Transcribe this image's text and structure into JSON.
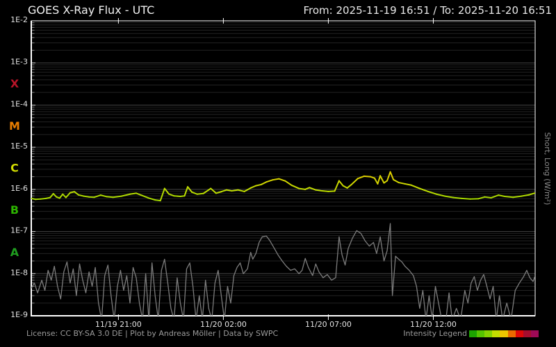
{
  "header": {
    "title": "GOES X-Ray Flux - UTC",
    "range": "From: 2025-11-19 16:51  /  To: 2025-11-20 16:51"
  },
  "footer": {
    "license": "License: CC BY-SA 3.0 DE | Plot by Andreas Möller | Data by SWPC",
    "legend_label": "Intensity Legend"
  },
  "chart_data": {
    "type": "line",
    "title": "GOES X-Ray Flux - UTC",
    "x_start": "2025-11-19 16:51",
    "x_end": "2025-11-20 16:51",
    "x_unit_hours": 24,
    "ylabel_right": "Short, Long (W/m²)",
    "y_log": true,
    "ylim": [
      1e-09,
      0.01
    ],
    "y_tick_labels": [
      "1E-2",
      "1E-3",
      "1E-4",
      "1E-5",
      "1E-6",
      "1E-7",
      "1E-8",
      "1E-9"
    ],
    "x_ticks": [
      {
        "label": "11/19 21:00",
        "t": 4.15
      },
      {
        "label": "11/20 02:00",
        "t": 9.15
      },
      {
        "label": "11/20 07:00",
        "t": 14.15
      },
      {
        "label": "11/20 12:00",
        "t": 19.15
      }
    ],
    "flare_classes": [
      {
        "label": "X",
        "flux": 0.000316,
        "color": "#b81428"
      },
      {
        "label": "M",
        "flux": 3.16e-05,
        "color": "#e87d00"
      },
      {
        "label": "C",
        "flux": 3.16e-06,
        "color": "#d2dc00"
      },
      {
        "label": "B",
        "flux": 3.16e-07,
        "color": "#2db400"
      },
      {
        "label": "A",
        "flux": 3.16e-08,
        "color": "#1f9e1f"
      }
    ],
    "legend_colors": [
      "#1ca400",
      "#55c400",
      "#84d200",
      "#c2de00",
      "#eec600",
      "#ea6a00",
      "#dd0707",
      "#a50d2e",
      "#9d0a56"
    ],
    "intensity_domain_log10": [
      -7.5,
      -3.5
    ],
    "grid": {
      "major_color": "#444444",
      "minor_color": "#232323",
      "tick_stub_color": "#8a8a8a"
    },
    "series": [
      {
        "name": "Long",
        "color_mode": "intensity",
        "points": [
          [
            0,
            6.1e-07
          ],
          [
            0.2,
            5.8e-07
          ],
          [
            0.45,
            5.9e-07
          ],
          [
            0.7,
            6.1e-07
          ],
          [
            0.9,
            6.4e-07
          ],
          [
            1.05,
            7.9e-07
          ],
          [
            1.2,
            6.6e-07
          ],
          [
            1.35,
            6.2e-07
          ],
          [
            1.5,
            7.7e-07
          ],
          [
            1.65,
            6.4e-07
          ],
          [
            1.85,
            8.3e-07
          ],
          [
            2.05,
            8.8e-07
          ],
          [
            2.25,
            7.4e-07
          ],
          [
            2.5,
            6.9e-07
          ],
          [
            2.75,
            6.6e-07
          ],
          [
            3.0,
            6.5e-07
          ],
          [
            3.3,
            7.3e-07
          ],
          [
            3.6,
            6.7e-07
          ],
          [
            3.9,
            6.5e-07
          ],
          [
            4.3,
            6.9e-07
          ],
          [
            4.7,
            7.7e-07
          ],
          [
            5.0,
            8.1e-07
          ],
          [
            5.3,
            7.1e-07
          ],
          [
            5.6,
            6.2e-07
          ],
          [
            5.9,
            5.6e-07
          ],
          [
            6.15,
            5.4e-07
          ],
          [
            6.35,
            1.05e-06
          ],
          [
            6.55,
            7.8e-07
          ],
          [
            6.8,
            7e-07
          ],
          [
            7.1,
            6.8e-07
          ],
          [
            7.3,
            7e-07
          ],
          [
            7.45,
            1.15e-06
          ],
          [
            7.65,
            8.6e-07
          ],
          [
            7.9,
            7.7e-07
          ],
          [
            8.2,
            8e-07
          ],
          [
            8.55,
            1.05e-06
          ],
          [
            8.8,
            8.1e-07
          ],
          [
            9.05,
            8.8e-07
          ],
          [
            9.3,
            9.7e-07
          ],
          [
            9.55,
            9.2e-07
          ],
          [
            9.85,
            9.7e-07
          ],
          [
            10.15,
            8.9e-07
          ],
          [
            10.45,
            1.08e-06
          ],
          [
            10.7,
            1.22e-06
          ],
          [
            10.95,
            1.3e-06
          ],
          [
            11.2,
            1.5e-06
          ],
          [
            11.5,
            1.68e-06
          ],
          [
            11.8,
            1.78e-06
          ],
          [
            12.1,
            1.58e-06
          ],
          [
            12.4,
            1.25e-06
          ],
          [
            12.75,
            1.05e-06
          ],
          [
            13.05,
            1e-06
          ],
          [
            13.25,
            1.1e-06
          ],
          [
            13.55,
            9.7e-07
          ],
          [
            13.85,
            9.2e-07
          ],
          [
            14.15,
            8.9e-07
          ],
          [
            14.45,
            9.1e-07
          ],
          [
            14.66,
            1.6e-06
          ],
          [
            14.85,
            1.22e-06
          ],
          [
            15.05,
            1.08e-06
          ],
          [
            15.25,
            1.3e-06
          ],
          [
            15.55,
            1.8e-06
          ],
          [
            15.85,
            2.05e-06
          ],
          [
            16.15,
            2e-06
          ],
          [
            16.35,
            1.85e-06
          ],
          [
            16.5,
            1.35e-06
          ],
          [
            16.62,
            2.1e-06
          ],
          [
            16.8,
            1.42e-06
          ],
          [
            16.95,
            1.6e-06
          ],
          [
            17.1,
            2.6e-06
          ],
          [
            17.25,
            1.7e-06
          ],
          [
            17.5,
            1.45e-06
          ],
          [
            17.8,
            1.35e-06
          ],
          [
            18.1,
            1.26e-06
          ],
          [
            18.5,
            1.05e-06
          ],
          [
            18.9,
            8.9e-07
          ],
          [
            19.3,
            7.7e-07
          ],
          [
            19.7,
            6.9e-07
          ],
          [
            20.1,
            6.4e-07
          ],
          [
            20.5,
            6.1e-07
          ],
          [
            20.9,
            5.9e-07
          ],
          [
            21.3,
            6e-07
          ],
          [
            21.6,
            6.6e-07
          ],
          [
            21.9,
            6.3e-07
          ],
          [
            22.25,
            7.3e-07
          ],
          [
            22.55,
            6.8e-07
          ],
          [
            22.95,
            6.5e-07
          ],
          [
            23.35,
            6.9e-07
          ],
          [
            23.7,
            7.4e-07
          ],
          [
            24,
            8.2e-07
          ]
        ]
      },
      {
        "name": "Short",
        "color": "#7d7d7d",
        "points": [
          [
            0,
            4.5e-09
          ],
          [
            0.15,
            6e-09
          ],
          [
            0.3,
            3.5e-09
          ],
          [
            0.5,
            7e-09
          ],
          [
            0.65,
            4e-09
          ],
          [
            0.8,
            1.2e-08
          ],
          [
            0.95,
            7e-09
          ],
          [
            1.1,
            1.5e-08
          ],
          [
            1.25,
            5e-09
          ],
          [
            1.4,
            2.5e-09
          ],
          [
            1.55,
            1.1e-08
          ],
          [
            1.7,
            1.9e-08
          ],
          [
            1.85,
            6e-09
          ],
          [
            2.0,
            1.3e-08
          ],
          [
            2.15,
            3e-09
          ],
          [
            2.3,
            1.7e-08
          ],
          [
            2.45,
            7e-09
          ],
          [
            2.6,
            3.5e-09
          ],
          [
            2.75,
            1.1e-08
          ],
          [
            2.9,
            5e-09
          ],
          [
            3.05,
            1.4e-08
          ],
          [
            3.2,
            2e-09
          ],
          [
            3.35,
            8e-10
          ],
          [
            3.5,
            9e-09
          ],
          [
            3.65,
            1.6e-08
          ],
          [
            3.8,
            3e-09
          ],
          [
            3.95,
            8e-10
          ],
          [
            4.1,
            5e-09
          ],
          [
            4.25,
            1.2e-08
          ],
          [
            4.4,
            4e-09
          ],
          [
            4.55,
            9e-09
          ],
          [
            4.7,
            2e-09
          ],
          [
            4.85,
            1.4e-08
          ],
          [
            5.0,
            8e-09
          ],
          [
            5.15,
            2e-09
          ],
          [
            5.3,
            8e-10
          ],
          [
            5.45,
            1e-08
          ],
          [
            5.6,
            8e-10
          ],
          [
            5.75,
            1.8e-08
          ],
          [
            5.9,
            3e-09
          ],
          [
            6.05,
            8e-10
          ],
          [
            6.2,
            1.2e-08
          ],
          [
            6.35,
            2.2e-08
          ],
          [
            6.5,
            6e-09
          ],
          [
            6.65,
            1.5e-09
          ],
          [
            6.8,
            8e-10
          ],
          [
            6.95,
            8e-09
          ],
          [
            7.1,
            2e-09
          ],
          [
            7.25,
            8e-10
          ],
          [
            7.4,
            1.3e-08
          ],
          [
            7.55,
            1.8e-08
          ],
          [
            7.7,
            5e-09
          ],
          [
            7.85,
            8e-10
          ],
          [
            8.0,
            3e-09
          ],
          [
            8.15,
            8e-10
          ],
          [
            8.3,
            7e-09
          ],
          [
            8.45,
            1.5e-09
          ],
          [
            8.6,
            8e-10
          ],
          [
            8.75,
            6e-09
          ],
          [
            8.9,
            1.2e-08
          ],
          [
            9.05,
            3e-09
          ],
          [
            9.2,
            8e-10
          ],
          [
            9.35,
            5e-09
          ],
          [
            9.5,
            2e-09
          ],
          [
            9.65,
            9e-09
          ],
          [
            9.8,
            1.4e-08
          ],
          [
            9.95,
            1.8e-08
          ],
          [
            10.1,
            1e-08
          ],
          [
            10.3,
            1.3e-08
          ],
          [
            10.45,
            3.2e-08
          ],
          [
            10.55,
            2.2e-08
          ],
          [
            10.7,
            3e-08
          ],
          [
            10.85,
            5.5e-08
          ],
          [
            11.0,
            7.5e-08
          ],
          [
            11.2,
            7.8e-08
          ],
          [
            11.35,
            6.2e-08
          ],
          [
            11.55,
            4.2e-08
          ],
          [
            11.75,
            2.8e-08
          ],
          [
            11.95,
            2e-08
          ],
          [
            12.15,
            1.5e-08
          ],
          [
            12.35,
            1.2e-08
          ],
          [
            12.55,
            1.3e-08
          ],
          [
            12.75,
            1e-08
          ],
          [
            12.9,
            1.2e-08
          ],
          [
            13.05,
            2.3e-08
          ],
          [
            13.2,
            1.4e-08
          ],
          [
            13.4,
            9e-09
          ],
          [
            13.55,
            1.7e-08
          ],
          [
            13.7,
            1.1e-08
          ],
          [
            13.9,
            8e-09
          ],
          [
            14.1,
            9.5e-09
          ],
          [
            14.3,
            7e-09
          ],
          [
            14.5,
            8e-09
          ],
          [
            14.66,
            7.5e-08
          ],
          [
            14.8,
            2.8e-08
          ],
          [
            14.95,
            1.6e-08
          ],
          [
            15.1,
            4e-08
          ],
          [
            15.3,
            7e-08
          ],
          [
            15.5,
            1.05e-07
          ],
          [
            15.7,
            9e-08
          ],
          [
            15.9,
            6e-08
          ],
          [
            16.1,
            4.5e-08
          ],
          [
            16.3,
            5.5e-08
          ],
          [
            16.45,
            3e-08
          ],
          [
            16.62,
            7.5e-08
          ],
          [
            16.8,
            2e-08
          ],
          [
            16.95,
            3.5e-08
          ],
          [
            17.1,
            1.55e-07
          ],
          [
            17.2,
            3e-09
          ],
          [
            17.35,
            2.6e-08
          ],
          [
            17.5,
            2.2e-08
          ],
          [
            17.65,
            1.9e-08
          ],
          [
            17.8,
            1.5e-08
          ],
          [
            18.0,
            1.2e-08
          ],
          [
            18.2,
            9e-09
          ],
          [
            18.35,
            5e-09
          ],
          [
            18.5,
            1.5e-09
          ],
          [
            18.65,
            4e-09
          ],
          [
            18.8,
            8e-10
          ],
          [
            18.95,
            3e-09
          ],
          [
            19.1,
            8e-10
          ],
          [
            19.25,
            5e-09
          ],
          [
            19.4,
            2e-09
          ],
          [
            19.55,
            8e-10
          ],
          [
            19.75,
            8e-10
          ],
          [
            19.9,
            3.5e-09
          ],
          [
            20.05,
            8e-10
          ],
          [
            20.25,
            1.5e-09
          ],
          [
            20.45,
            8e-10
          ],
          [
            20.65,
            4e-09
          ],
          [
            20.8,
            2e-09
          ],
          [
            20.95,
            6e-09
          ],
          [
            21.1,
            8.5e-09
          ],
          [
            21.25,
            4e-09
          ],
          [
            21.4,
            7e-09
          ],
          [
            21.55,
            9.5e-09
          ],
          [
            21.7,
            5e-09
          ],
          [
            21.85,
            2.5e-09
          ],
          [
            22.0,
            5e-09
          ],
          [
            22.15,
            8e-10
          ],
          [
            22.3,
            3e-09
          ],
          [
            22.45,
            8e-10
          ],
          [
            22.65,
            2e-09
          ],
          [
            22.85,
            8e-10
          ],
          [
            23.05,
            4e-09
          ],
          [
            23.25,
            6e-09
          ],
          [
            23.45,
            8.5e-09
          ],
          [
            23.6,
            1.2e-08
          ],
          [
            23.75,
            8e-09
          ],
          [
            23.9,
            6.5e-09
          ],
          [
            24,
            9e-09
          ]
        ]
      }
    ]
  }
}
